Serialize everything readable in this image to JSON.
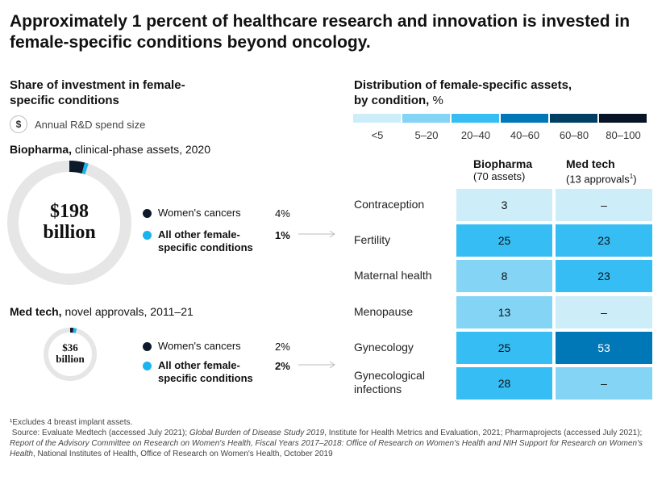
{
  "title": "Approximately 1 percent of healthcare research and innovation is invested in female-specific conditions beyond oncology.",
  "left": {
    "title_line1": "Share of investment in female-",
    "title_line2": "specific conditions",
    "legend_icon": "dollar-icon",
    "legend_symbol": "$",
    "legend_label": "Annual R&D spend size",
    "biopharma": {
      "label_bold": "Biopharma,",
      "label_rest": " clinical-phase assets, 2020",
      "donut_line1": "$198",
      "donut_line2": "billion",
      "items": [
        {
          "name": "Women's cancers",
          "value": "4%",
          "color": "#0d1a2b"
        },
        {
          "name_line1": "All other female-",
          "name_line2": "specific conditions",
          "value": "1%",
          "color": "#1ab3f0"
        }
      ]
    },
    "medtech": {
      "label_bold": "Med tech,",
      "label_rest": " novel approvals, 2011–21",
      "donut_line1": "$36",
      "donut_line2": "billion",
      "items": [
        {
          "name": "Women's cancers",
          "value": "2%",
          "color": "#0d1a2b"
        },
        {
          "name_line1": "All other female-",
          "name_line2": "specific conditions",
          "value": "2%",
          "color": "#1ab3f0"
        }
      ]
    }
  },
  "right": {
    "title_line1": "Distribution of female-specific assets,",
    "title_line2_bold": "by condition,",
    "title_line2_rest": " %",
    "scale": [
      {
        "label": "<5",
        "color": "#cdeef8"
      },
      {
        "label": "5–20",
        "color": "#84d4f5"
      },
      {
        "label": "20–40",
        "color": "#36bdf4"
      },
      {
        "label": "40–60",
        "color": "#0077b6"
      },
      {
        "label": "60–80",
        "color": "#003f63"
      },
      {
        "label": "80–100",
        "color": "#071426"
      }
    ],
    "col1_line1": "Biopharma",
    "col1_line2": "(70 assets)",
    "col2_line1": "Med tech",
    "col2_line2": "(13 approvals",
    "col2_sup": "1",
    "col2_close": ")"
  },
  "chart_data": [
    {
      "type": "pie",
      "title": "Biopharma, clinical-phase assets, 2020",
      "center_label": "$198 billion",
      "categories": [
        "Women's cancers",
        "All other female-specific conditions"
      ],
      "values": [
        4,
        1
      ],
      "unit": "%"
    },
    {
      "type": "pie",
      "title": "Med tech, novel approvals, 2011–21",
      "center_label": "$36 billion",
      "categories": [
        "Women's cancers",
        "All other female-specific conditions"
      ],
      "values": [
        2,
        2
      ],
      "unit": "%"
    },
    {
      "type": "heatmap",
      "title": "Distribution of female-specific assets, by condition, %",
      "rows": [
        "Contraception",
        "Fertility",
        "Maternal health",
        "Menopause",
        "Gynecology",
        "Gynecological infections"
      ],
      "columns": [
        "Biopharma (70 assets)",
        "Med tech (13 approvals)"
      ],
      "values": [
        [
          "3",
          "–"
        ],
        [
          "25",
          "23"
        ],
        [
          "8",
          "23"
        ],
        [
          "13",
          "–"
        ],
        [
          "25",
          "53"
        ],
        [
          "28",
          "–"
        ]
      ],
      "cell_colors": [
        [
          "#cdeef8",
          "#cdeef8"
        ],
        [
          "#36bdf4",
          "#36bdf4"
        ],
        [
          "#84d4f5",
          "#36bdf4"
        ],
        [
          "#84d4f5",
          "#cdeef8"
        ],
        [
          "#36bdf4",
          "#0077b6"
        ],
        [
          "#36bdf4",
          "#84d4f5"
        ]
      ]
    }
  ],
  "footnote": {
    "line1": "¹Excludes 4 breast implant assets.",
    "src_a": "Source: Evaluate Medtech (accessed July 2021); ",
    "src_b_it": "Global Burden of Disease Study 2019",
    "src_c": ", Institute for Health Metrics and Evaluation, 2021; Pharmaprojects (accessed July 2021); ",
    "src_d_it": "Report of the Advisory Committee on Research on Women's Health, Fiscal Years 2017–2018: Office of Research on Women's Health and NIH Support for Research on Women's Health",
    "src_e": ", National Institutes of Health, Office of Research on Women's Health, October 2019"
  }
}
